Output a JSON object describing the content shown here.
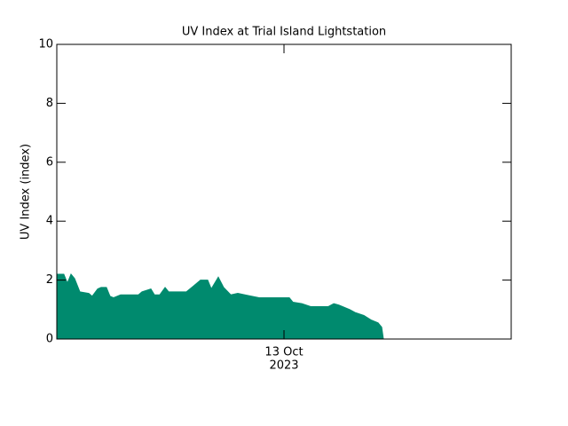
{
  "chart_data": {
    "type": "area",
    "title": "UV Index at Trial Island Lightstation",
    "y_label": "UV Index (index)",
    "color": "#008a6e",
    "x": [
      -12,
      -11.63,
      -11.44,
      -11.25,
      -11.06,
      -10.78,
      -10.31,
      -10.13,
      -9.84,
      -9.66,
      -9.38,
      -9.19,
      -9,
      -8.63,
      -7.69,
      -7.5,
      -7.03,
      -6.84,
      -6.56,
      -6.28,
      -6.09,
      -5.16,
      -4.78,
      -4.41,
      -4.03,
      -3.84,
      -3.47,
      -3.19,
      -2.81,
      -2.44,
      -2.06,
      -1.69,
      -1.31,
      0.28,
      0.47,
      0.94,
      1.41,
      2.34,
      2.63,
      2.91,
      3.47,
      3.75,
      4.22,
      4.59,
      4.97,
      5.16,
      5.25
    ],
    "values": [
      2.2,
      2.2,
      1.9,
      2.2,
      2.05,
      1.6,
      1.55,
      1.45,
      1.7,
      1.75,
      1.75,
      1.45,
      1.4,
      1.5,
      1.5,
      1.6,
      1.7,
      1.5,
      1.5,
      1.75,
      1.6,
      1.6,
      1.8,
      2.0,
      2.0,
      1.7,
      2.1,
      1.75,
      1.5,
      1.55,
      1.5,
      1.45,
      1.4,
      1.4,
      1.25,
      1.2,
      1.1,
      1.1,
      1.2,
      1.15,
      1.0,
      0.9,
      0.8,
      0.65,
      0.55,
      0.4,
      0
    ],
    "xlim": [
      -12,
      12
    ],
    "xticks": [
      {
        "value": 0,
        "label": "13 Oct"
      }
    ],
    "x_year_label": "2023",
    "ylim": [
      0,
      10
    ],
    "yticks": [
      0,
      2,
      4,
      6,
      8,
      10
    ],
    "grid": false
  }
}
